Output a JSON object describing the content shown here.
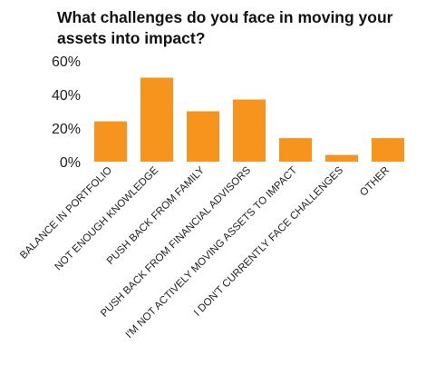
{
  "chart_data": {
    "type": "bar",
    "title_lines": [
      "What challenges do you face in moving your",
      "assets into impact?"
    ],
    "categories": [
      "BALANCE IN PORTFOLIO",
      "NOT ENOUGH KNOWLEDGE",
      "PUSH BACK FROM FAMILY",
      "PUSH BACK FROM FINANCIAL ADVISORS",
      "I'M NOT ACTIVELY MOVING ASSETS TO IMPACT",
      "I DON'T CURRENTLY FACE CHALLENGES",
      "OTHER"
    ],
    "values": [
      24,
      50,
      30,
      37,
      14,
      4,
      14
    ],
    "ylim": [
      0,
      60
    ],
    "ytick_labels": [
      "0%",
      "20%",
      "40%",
      "60%"
    ],
    "ytick_values": [
      0,
      20,
      40,
      60
    ],
    "grid": false,
    "bar_color": "#F7941D"
  }
}
